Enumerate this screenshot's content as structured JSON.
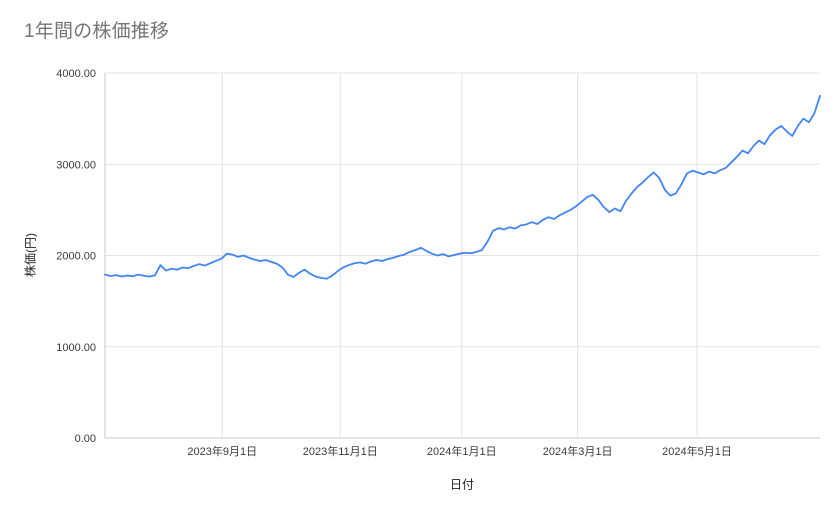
{
  "page": {
    "title": "1年間の株価推移"
  },
  "colors": {
    "line": "#4285f4",
    "grid": "#e3e3e3",
    "axis": "#c9c9c9",
    "tick_text": "#3c3c3c",
    "title_text": "#757575",
    "background": "#ffffff"
  },
  "chart_data": {
    "type": "line",
    "title": "1年間の株価推移",
    "xlabel": "日付",
    "ylabel": "株価(円)",
    "ylim": [
      0,
      4000
    ],
    "grid": true,
    "legend": "none",
    "y_ticks": [
      {
        "value": 0,
        "label": "0.00"
      },
      {
        "value": 1000,
        "label": "1000.00"
      },
      {
        "value": 2000,
        "label": "2000.00"
      },
      {
        "value": 3000,
        "label": "3000.00"
      },
      {
        "value": 4000,
        "label": "4000.00"
      }
    ],
    "x_ticks": [
      {
        "label": "2023年9月1日",
        "f": 0.164
      },
      {
        "label": "2023年11月1日",
        "f": 0.329
      },
      {
        "label": "2024年1月1日",
        "f": 0.499
      },
      {
        "label": "2024年3月1日",
        "f": 0.661
      },
      {
        "label": "2024年5月1日",
        "f": 0.828
      }
    ],
    "series": [
      {
        "name": "株価",
        "color": "#4285f4",
        "values": [
          1790,
          1775,
          1785,
          1770,
          1780,
          1772,
          1790,
          1778,
          1768,
          1782,
          1895,
          1835,
          1855,
          1845,
          1868,
          1860,
          1885,
          1905,
          1890,
          1915,
          1940,
          1965,
          2020,
          2010,
          1985,
          2000,
          1975,
          1955,
          1940,
          1950,
          1930,
          1910,
          1870,
          1790,
          1765,
          1810,
          1845,
          1800,
          1770,
          1755,
          1745,
          1780,
          1830,
          1870,
          1895,
          1915,
          1925,
          1910,
          1935,
          1950,
          1940,
          1960,
          1975,
          1995,
          2010,
          2040,
          2060,
          2085,
          2050,
          2020,
          2000,
          2015,
          1990,
          2005,
          2020,
          2030,
          2025,
          2040,
          2060,
          2150,
          2270,
          2300,
          2285,
          2310,
          2295,
          2330,
          2340,
          2365,
          2345,
          2390,
          2420,
          2400,
          2440,
          2470,
          2500,
          2540,
          2590,
          2640,
          2665,
          2610,
          2530,
          2475,
          2515,
          2485,
          2600,
          2680,
          2750,
          2800,
          2860,
          2910,
          2850,
          2720,
          2655,
          2680,
          2780,
          2900,
          2930,
          2910,
          2890,
          2920,
          2900,
          2935,
          2960,
          3020,
          3080,
          3150,
          3120,
          3200,
          3260,
          3220,
          3320,
          3380,
          3420,
          3360,
          3310,
          3420,
          3500,
          3460,
          3560,
          3750
        ]
      }
    ]
  }
}
